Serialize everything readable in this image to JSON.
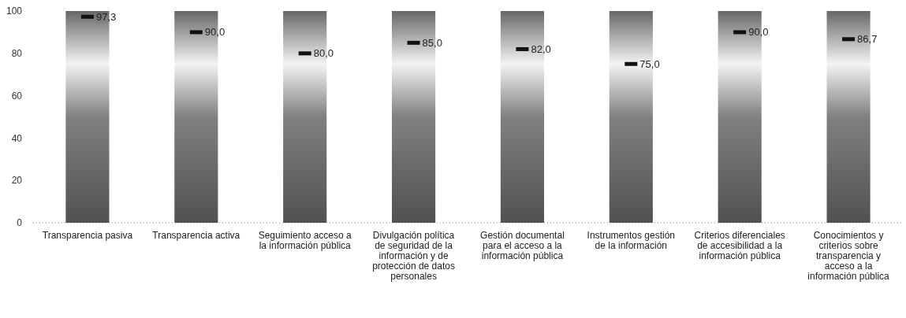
{
  "chart_data": {
    "type": "bar",
    "categories": [
      "Transparencia pasiva",
      "Transparencia activa",
      "Seguimiento acceso a la información pública",
      "Divulgación política de seguridad de la información y de protección de datos personales",
      "Gestión documental para el acceso a la información pública",
      "Instrumentos gestión de la información",
      "Criterios diferenciales de accesibilidad a la información pública",
      "Conocimientos y criterios sobre transparencia y acceso a la información pública"
    ],
    "series": [
      {
        "color": "#808080",
        "values": [
          100,
          100,
          100,
          100,
          100,
          100,
          100,
          100
        ]
      },
      {
        "type": "scatter",
        "color": "#111111",
        "values": [
          97.3,
          90.0,
          80.0,
          85.0,
          82.0,
          75.0,
          90.0,
          86.7
        ],
        "value_labels": [
          "97,3",
          "90,0",
          "80,0",
          "85,0",
          "82,0",
          "75,0",
          "90,0",
          "86,7"
        ]
      }
    ],
    "ylim": [
      0,
      100
    ],
    "yticks": [
      0,
      20,
      40,
      60,
      80,
      100
    ],
    "grid": false
  }
}
